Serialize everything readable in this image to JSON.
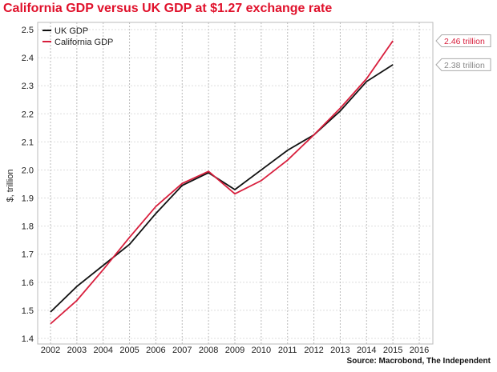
{
  "chart_data": {
    "type": "line",
    "title": "California GDP versus UK GDP at $1.27 exchange rate",
    "ylabel": "$, trillion",
    "xlabel": "",
    "source": "Source: Macrobond, The Independent",
    "x": [
      2002,
      2003,
      2004,
      2005,
      2006,
      2007,
      2008,
      2009,
      2010,
      2011,
      2012,
      2013,
      2014,
      2015
    ],
    "x_ticks": [
      "2002",
      "2003",
      "2004",
      "2005",
      "2006",
      "2007",
      "2008",
      "2009",
      "2010",
      "2011",
      "2012",
      "2013",
      "2014",
      "2015",
      "2016"
    ],
    "y_ticks": [
      "1.4",
      "1.5",
      "1.6",
      "1.7",
      "1.8",
      "1.9",
      "2.0",
      "2.1",
      "2.2",
      "2.3",
      "2.4",
      "2.5"
    ],
    "xlim": [
      2002,
      2016
    ],
    "ylim": [
      1.4,
      2.5
    ],
    "grid": true,
    "legend_placement": "top-left",
    "series": [
      {
        "name": "UK GDP",
        "color": "#111111",
        "values": [
          1.494,
          1.585,
          1.66,
          1.735,
          1.845,
          1.945,
          1.99,
          1.93,
          2.0,
          2.07,
          2.125,
          2.21,
          2.315,
          2.375
        ],
        "end_label": "2.38 trillion",
        "label_color": "#888888"
      },
      {
        "name": "California GDP",
        "color": "#d81e3c",
        "values": [
          1.452,
          1.535,
          1.645,
          1.76,
          1.87,
          1.952,
          1.995,
          1.915,
          1.962,
          2.035,
          2.125,
          2.22,
          2.325,
          2.46
        ],
        "end_label": "2.46 trillion",
        "label_color": "#d81e3c"
      }
    ]
  }
}
